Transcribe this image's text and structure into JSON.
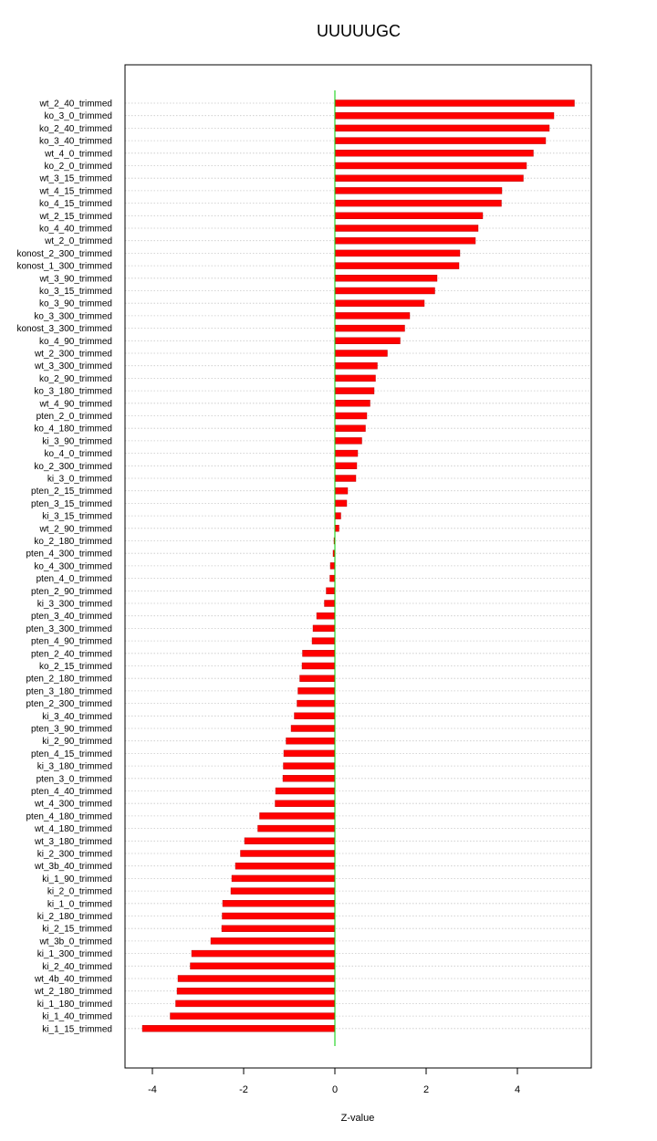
{
  "chart_data": {
    "type": "bar",
    "orientation": "horizontal",
    "title": "UUUUUGC",
    "xlabel": "Z-value",
    "ylabel": "",
    "xlim": [
      -4.6,
      5.6
    ],
    "xticks": [
      -4,
      -2,
      0,
      2,
      4
    ],
    "grid": "horizontal dotted",
    "legend": "none",
    "colors": {
      "bar_fill": "#ff0000",
      "bar_stroke": "#aa0000",
      "zero_line": "#00cc00",
      "grid": "#c8c8c8",
      "axis": "#000000"
    },
    "categories": [
      "wt_2_40_trimmed",
      "ko_3_0_trimmed",
      "ko_2_40_trimmed",
      "ko_3_40_trimmed",
      "wt_4_0_trimmed",
      "ko_2_0_trimmed",
      "wt_3_15_trimmed",
      "wt_4_15_trimmed",
      "ko_4_15_trimmed",
      "wt_2_15_trimmed",
      "ko_4_40_trimmed",
      "wt_2_0_trimmed",
      "konost_2_300_trimmed",
      "konost_1_300_trimmed",
      "wt_3_90_trimmed",
      "ko_3_15_trimmed",
      "ko_3_90_trimmed",
      "ko_3_300_trimmed",
      "konost_3_300_trimmed",
      "ko_4_90_trimmed",
      "wt_2_300_trimmed",
      "wt_3_300_trimmed",
      "ko_2_90_trimmed",
      "ko_3_180_trimmed",
      "wt_4_90_trimmed",
      "pten_2_0_trimmed",
      "ko_4_180_trimmed",
      "ki_3_90_trimmed",
      "ko_4_0_trimmed",
      "ko_2_300_trimmed",
      "ki_3_0_trimmed",
      "pten_2_15_trimmed",
      "pten_3_15_trimmed",
      "ki_3_15_trimmed",
      "wt_2_90_trimmed",
      "ko_2_180_trimmed",
      "pten_4_300_trimmed",
      "ko_4_300_trimmed",
      "pten_4_0_trimmed",
      "pten_2_90_trimmed",
      "ki_3_300_trimmed",
      "pten_3_40_trimmed",
      "pten_3_300_trimmed",
      "pten_4_90_trimmed",
      "pten_2_40_trimmed",
      "ko_2_15_trimmed",
      "pten_2_180_trimmed",
      "pten_3_180_trimmed",
      "pten_2_300_trimmed",
      "ki_3_40_trimmed",
      "pten_3_90_trimmed",
      "ki_2_90_trimmed",
      "pten_4_15_trimmed",
      "ki_3_180_trimmed",
      "pten_3_0_trimmed",
      "pten_4_40_trimmed",
      "wt_4_300_trimmed",
      "pten_4_180_trimmed",
      "wt_4_180_trimmed",
      "wt_3_180_trimmed",
      "ki_2_300_trimmed",
      "wt_3b_40_trimmed",
      "ki_1_90_trimmed",
      "ki_2_0_trimmed",
      "ki_1_0_trimmed",
      "ki_2_180_trimmed",
      "ki_2_15_trimmed",
      "wt_3b_0_trimmed",
      "ki_1_300_trimmed",
      "ki_2_40_trimmed",
      "wt_4b_40_trimmed",
      "wt_2_180_trimmed",
      "ki_1_180_trimmed",
      "ki_1_40_trimmed",
      "ki_1_15_trimmed"
    ],
    "values": [
      5.25,
      4.8,
      4.7,
      4.62,
      4.35,
      4.2,
      4.13,
      3.66,
      3.65,
      3.24,
      3.14,
      3.08,
      2.74,
      2.72,
      2.24,
      2.19,
      1.96,
      1.64,
      1.53,
      1.43,
      1.15,
      0.93,
      0.89,
      0.86,
      0.77,
      0.7,
      0.67,
      0.59,
      0.5,
      0.48,
      0.46,
      0.28,
      0.26,
      0.13,
      0.09,
      -0.02,
      -0.04,
      -0.1,
      -0.11,
      -0.19,
      -0.23,
      -0.4,
      -0.48,
      -0.5,
      -0.71,
      -0.72,
      -0.77,
      -0.81,
      -0.83,
      -0.89,
      -0.96,
      -1.07,
      -1.12,
      -1.13,
      -1.14,
      -1.3,
      -1.31,
      -1.65,
      -1.69,
      -1.98,
      -2.07,
      -2.18,
      -2.26,
      -2.28,
      -2.46,
      -2.47,
      -2.48,
      -2.72,
      -3.14,
      -3.17,
      -3.44,
      -3.46,
      -3.49,
      -3.61,
      -4.22
    ]
  }
}
